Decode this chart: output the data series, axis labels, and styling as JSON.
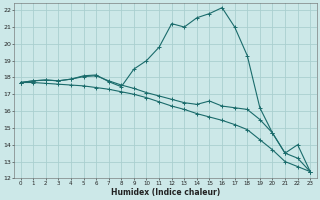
{
  "xlabel": "Humidex (Indice chaleur)",
  "bg_color": "#cce8e8",
  "grid_color": "#aacfcf",
  "line_color": "#1a6b6b",
  "xlim": [
    -0.5,
    23.5
  ],
  "ylim": [
    12,
    22.4
  ],
  "xticks": [
    0,
    1,
    2,
    3,
    4,
    5,
    6,
    7,
    8,
    9,
    10,
    11,
    12,
    13,
    14,
    15,
    16,
    17,
    18,
    19,
    20,
    21,
    22,
    23
  ],
  "yticks": [
    12,
    13,
    14,
    15,
    16,
    17,
    18,
    19,
    20,
    21,
    22
  ],
  "line1_x": [
    0,
    1,
    2,
    3,
    4,
    5,
    6,
    7,
    8,
    9,
    10,
    11,
    12,
    13,
    14,
    15,
    16,
    17,
    18,
    19,
    20,
    21,
    22,
    23
  ],
  "line1_y": [
    17.7,
    17.8,
    17.85,
    17.8,
    17.9,
    18.1,
    18.15,
    17.75,
    17.45,
    18.5,
    19.0,
    19.8,
    21.2,
    21.0,
    21.55,
    21.8,
    22.15,
    21.0,
    19.3,
    16.2,
    14.7,
    13.5,
    14.0,
    12.4
  ],
  "line2_x": [
    0,
    1,
    2,
    3,
    4,
    5,
    6,
    7,
    8,
    9,
    10,
    11,
    12,
    13,
    14,
    15,
    16,
    17,
    18,
    19,
    20,
    21,
    22,
    23
  ],
  "line2_y": [
    17.7,
    17.8,
    17.85,
    17.8,
    17.9,
    18.05,
    18.1,
    17.8,
    17.55,
    17.35,
    17.1,
    16.9,
    16.7,
    16.5,
    16.4,
    16.6,
    16.3,
    16.2,
    16.1,
    15.5,
    14.7,
    13.5,
    13.2,
    12.4
  ],
  "line3_x": [
    0,
    1,
    2,
    3,
    4,
    5,
    6,
    7,
    8,
    9,
    10,
    11,
    12,
    13,
    14,
    15,
    16,
    17,
    18,
    19,
    20,
    21,
    22,
    23
  ],
  "line3_y": [
    17.7,
    17.7,
    17.65,
    17.6,
    17.55,
    17.5,
    17.4,
    17.3,
    17.15,
    17.0,
    16.8,
    16.55,
    16.3,
    16.1,
    15.85,
    15.65,
    15.45,
    15.2,
    14.9,
    14.3,
    13.7,
    13.0,
    12.7,
    12.4
  ]
}
